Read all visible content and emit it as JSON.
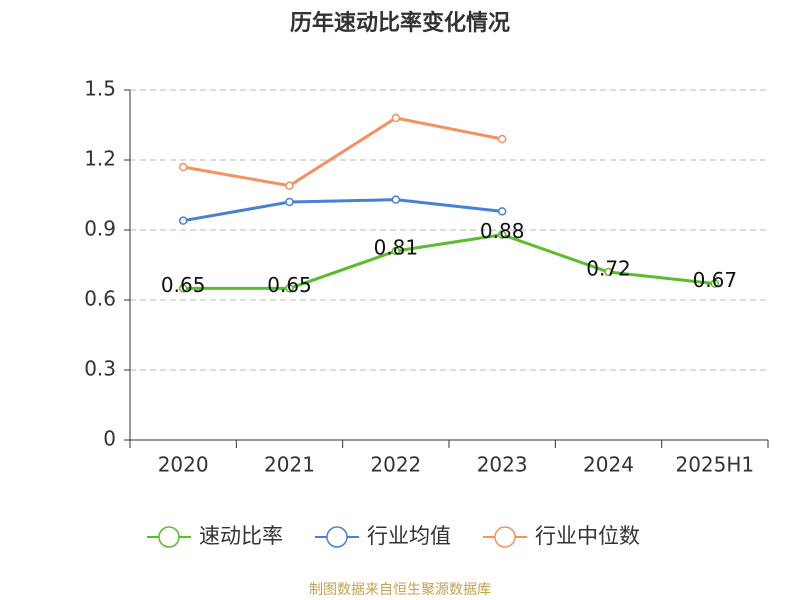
{
  "chart_data": {
    "type": "line",
    "title": "历年速动比率变化情况",
    "categories": [
      "2020",
      "2021",
      "2022",
      "2023",
      "2024",
      "2025H1"
    ],
    "series": [
      {
        "name": "速动比率",
        "color": "#5bbd2b",
        "values": [
          0.65,
          0.65,
          0.81,
          0.88,
          0.72,
          0.67
        ],
        "data_labels": true
      },
      {
        "name": "行业均值",
        "color": "#4a7fd6",
        "values": [
          0.94,
          1.02,
          1.03,
          0.98,
          null,
          null
        ],
        "data_labels": false
      },
      {
        "name": "行业中位数",
        "color": "#f59160",
        "values": [
          1.17,
          1.09,
          1.38,
          1.29,
          null,
          null
        ],
        "data_labels": false
      }
    ],
    "ylim": [
      0,
      1.5
    ],
    "yticks": [
      0,
      0.3,
      0.6,
      0.9,
      1.2,
      1.5
    ],
    "grid": true,
    "legend": "bottom",
    "source": "制图数据来自恒生聚源数据库"
  }
}
